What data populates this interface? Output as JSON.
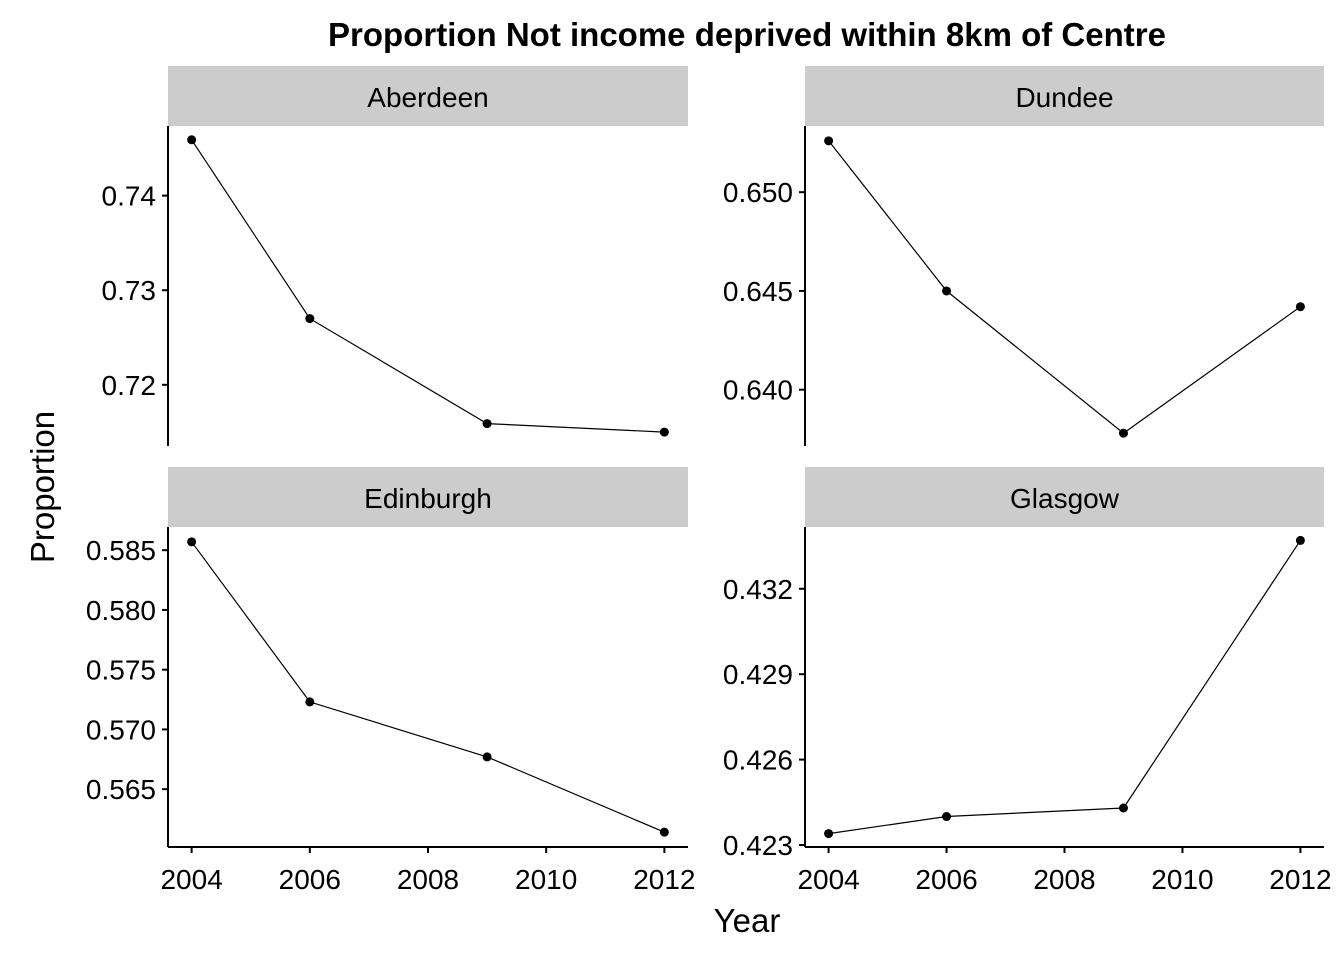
{
  "chart_data": {
    "type": "line",
    "title": "Proportion Not income deprived within 8km of Centre",
    "xlabel": "Year",
    "ylabel": "Proportion",
    "grid": false,
    "x_ticks": [
      2004,
      2006,
      2008,
      2010,
      2012
    ],
    "x_range": [
      2003.6,
      2012.4
    ],
    "colors": {
      "line": "#000000",
      "strip": "#cccccc",
      "axis": "#000000"
    },
    "panels": [
      {
        "name": "Aberdeen",
        "x": [
          2004,
          2006,
          2009,
          2012
        ],
        "y": [
          0.7459,
          0.727,
          0.7159,
          0.715
        ],
        "y_ticks": [
          0.72,
          0.73,
          0.74
        ],
        "y_tick_labels": [
          "0.72",
          "0.73",
          "0.74"
        ],
        "ylim": [
          0.71353,
          0.74736
        ]
      },
      {
        "name": "Dundee",
        "x": [
          2004,
          2006,
          2009,
          2012
        ],
        "y": [
          0.6526,
          0.645,
          0.6378,
          0.6442
        ],
        "y_ticks": [
          0.64,
          0.645,
          0.65
        ],
        "y_tick_labels": [
          "0.640",
          "0.645",
          "0.650"
        ],
        "ylim": [
          0.63715,
          0.65335
        ]
      },
      {
        "name": "Edinburgh",
        "x": [
          2004,
          2006,
          2009,
          2012
        ],
        "y": [
          0.5857,
          0.5723,
          0.5677,
          0.5614
        ],
        "y_ticks": [
          0.565,
          0.57,
          0.575,
          0.58,
          0.585
        ],
        "y_tick_labels": [
          "0.565",
          "0.570",
          "0.575",
          "0.580",
          "0.585"
        ],
        "ylim": [
          0.56016,
          0.58694
        ]
      },
      {
        "name": "Glasgow",
        "x": [
          2004,
          2006,
          2009,
          2012
        ],
        "y": [
          0.4234,
          0.424,
          0.4243,
          0.4337
        ],
        "y_ticks": [
          0.423,
          0.426,
          0.429,
          0.432
        ],
        "y_tick_labels": [
          "0.423",
          "0.426",
          "0.429",
          "0.432"
        ],
        "ylim": [
          0.42293,
          0.43417
        ]
      }
    ]
  }
}
